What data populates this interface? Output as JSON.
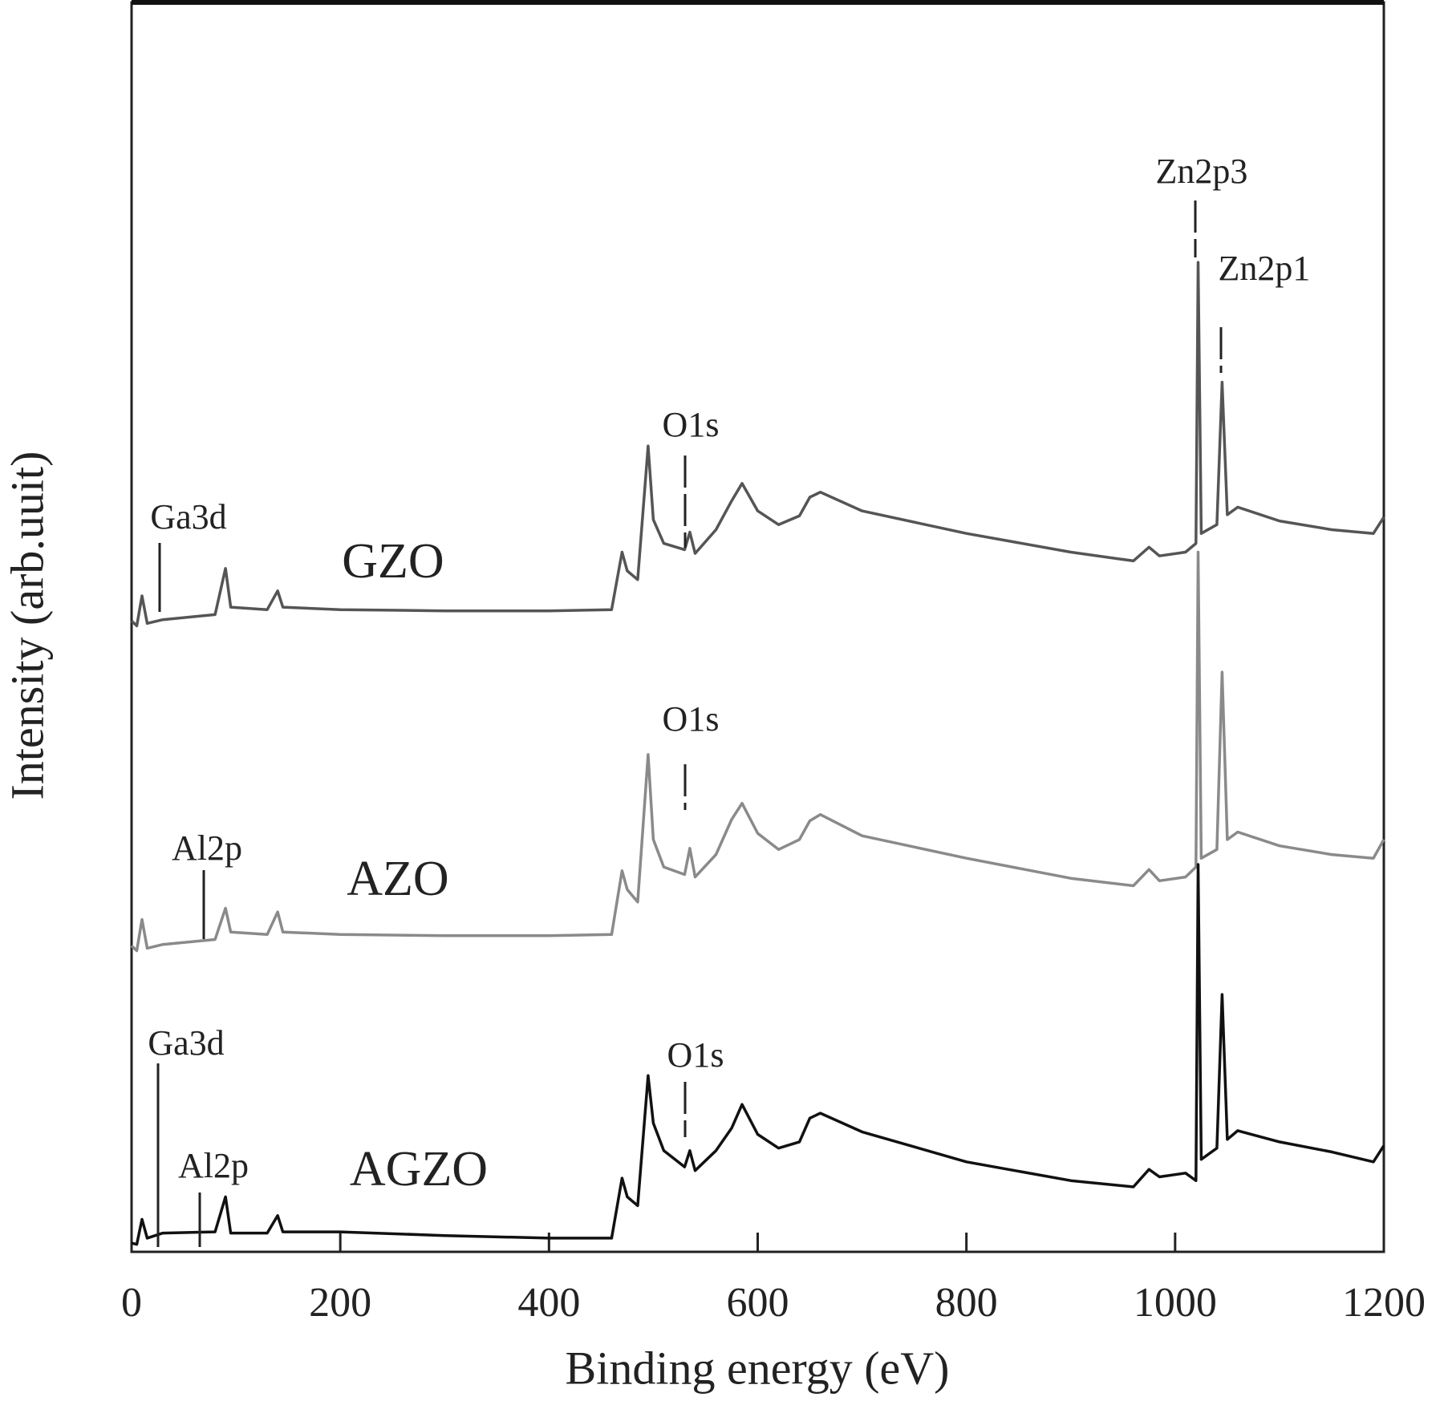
{
  "chart_data": {
    "type": "line",
    "xlabel": "Binding energy (eV)",
    "ylabel": "Intensity (arb.uuit)",
    "xlim": [
      0,
      1200
    ],
    "xticks": [
      0,
      200,
      400,
      600,
      800,
      1000,
      1200
    ],
    "ylim": [
      0,
      100
    ],
    "grid": false,
    "annotations": [
      "Ga3d",
      "O1s",
      "Zn2p3",
      "Zn2p1",
      "O1s",
      "Al2p",
      "Ga3d",
      "Al2p",
      "O1s"
    ],
    "x": [
      0,
      5,
      10,
      15,
      30,
      80,
      90,
      95,
      130,
      140,
      145,
      200,
      300,
      400,
      460,
      470,
      475,
      485,
      495,
      500,
      510,
      530,
      535,
      540,
      560,
      575,
      585,
      600,
      620,
      640,
      650,
      660,
      700,
      800,
      900,
      960,
      975,
      985,
      1010,
      1020,
      1022,
      1025,
      1040,
      1045,
      1050,
      1060,
      1100,
      1150,
      1190,
      1200
    ],
    "series": [
      {
        "name": "GZO",
        "color": "#555555",
        "values": [
          50.5,
          50.1,
          52.5,
          50.3,
          50.6,
          51.0,
          54.7,
          51.6,
          51.4,
          52.9,
          51.6,
          51.4,
          51.3,
          51.3,
          51.4,
          56.0,
          54.5,
          53.8,
          64.5,
          58.6,
          56.7,
          56.2,
          57.6,
          55.9,
          57.8,
          60.1,
          61.5,
          59.3,
          58.2,
          58.9,
          60.4,
          60.8,
          59.3,
          57.5,
          56.0,
          55.3,
          56.4,
          55.7,
          56.0,
          56.7,
          79.2,
          57.5,
          58.2,
          69.6,
          59.0,
          59.6,
          58.5,
          57.8,
          57.5,
          58.8
        ]
      },
      {
        "name": "AZO",
        "color": "#8a8a8a",
        "values": [
          24.5,
          24.1,
          26.6,
          24.3,
          24.6,
          25.0,
          27.5,
          25.6,
          25.4,
          27.2,
          25.6,
          25.4,
          25.3,
          25.3,
          25.4,
          30.5,
          29.0,
          28.0,
          39.8,
          33.0,
          30.8,
          30.2,
          32.3,
          30.0,
          31.8,
          34.6,
          35.9,
          33.5,
          32.2,
          33.0,
          34.5,
          35.0,
          33.3,
          31.5,
          29.9,
          29.3,
          30.6,
          29.7,
          30.0,
          30.8,
          56.0,
          31.5,
          32.2,
          46.4,
          33.0,
          33.6,
          32.5,
          31.8,
          31.5,
          33.0
        ]
      },
      {
        "name": "AGZO",
        "color": "#111111",
        "values": [
          0.7,
          0.6,
          2.6,
          1.1,
          1.5,
          1.6,
          4.4,
          1.5,
          1.5,
          2.9,
          1.6,
          1.6,
          1.3,
          1.1,
          1.1,
          5.9,
          4.4,
          3.7,
          14.1,
          10.3,
          8.1,
          6.8,
          8.1,
          6.5,
          8.1,
          9.9,
          11.8,
          9.4,
          8.3,
          8.8,
          10.7,
          11.1,
          9.6,
          7.2,
          5.7,
          5.2,
          6.6,
          6.0,
          6.3,
          5.7,
          31.0,
          7.4,
          8.3,
          20.6,
          9.0,
          9.7,
          8.8,
          8.0,
          7.2,
          8.5
        ]
      }
    ]
  }
}
